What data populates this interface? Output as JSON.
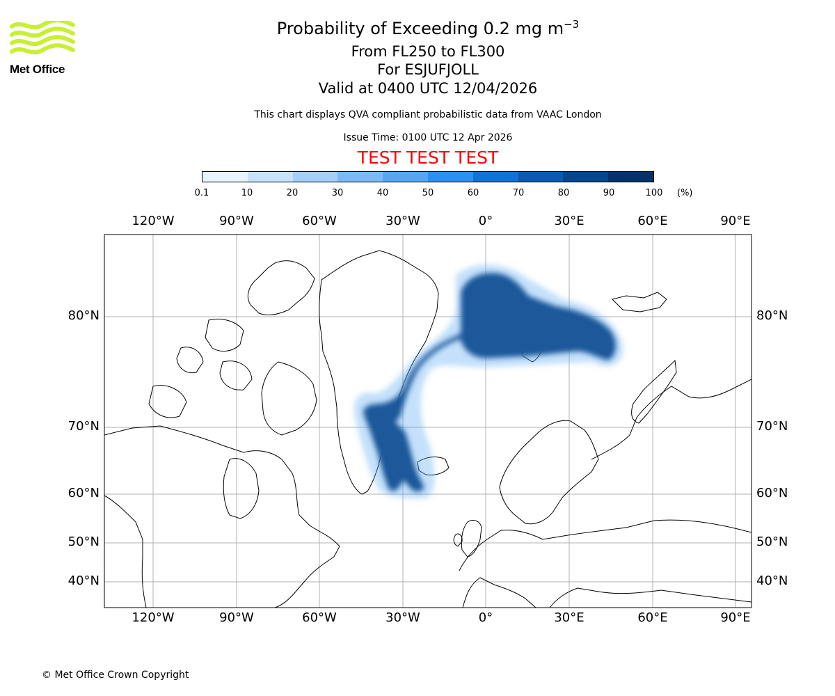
{
  "header": {
    "title_main": "Probability of Exceeding 0.2 mg m",
    "title_sup": "−3",
    "level_range": "From FL250 to FL300",
    "location": "For ESJUFJOLL",
    "valid_time": "Valid at 0400 UTC 12/04/2026",
    "description": "This chart displays QVA compliant probabilistic data from VAAC London",
    "issue_time": "Issue Time: 0100 UTC 12 Apr 2026",
    "test_banner": "TEST TEST TEST"
  },
  "logo": {
    "text": "Met Office",
    "color": "#c8f032"
  },
  "colorbar": {
    "ticks": [
      "0.1",
      "10",
      "20",
      "30",
      "40",
      "50",
      "60",
      "70",
      "80",
      "90",
      "100"
    ],
    "unit": "(%)",
    "colors": [
      "#e8f4ff",
      "#c6e2fc",
      "#a3cffa",
      "#7cbaf6",
      "#56a7f3",
      "#2d90ee",
      "#1173d4",
      "#0a5bb0",
      "#06468d",
      "#03316a"
    ]
  },
  "map": {
    "lon_labels": [
      "120°W",
      "90°W",
      "60°W",
      "30°W",
      "0°",
      "30°E",
      "60°E",
      "90°E"
    ],
    "lat_labels": [
      "80°N",
      "70°N",
      "60°N",
      "50°N",
      "40°N"
    ],
    "plume_color": "#003366"
  },
  "footer": {
    "copyright": "© Met Office Crown Copyright"
  }
}
